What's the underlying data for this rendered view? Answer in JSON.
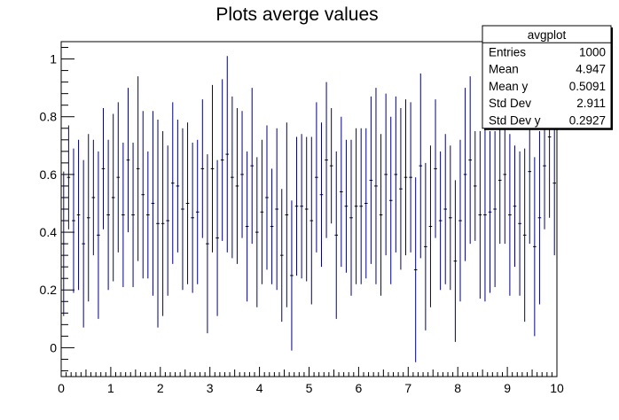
{
  "chart_data": {
    "type": "scatter",
    "title": "Plots averge values",
    "xlabel": "",
    "ylabel": "",
    "xlim": [
      0,
      10
    ],
    "ylim": [
      -0.1,
      1.06
    ],
    "x_ticks": [
      "0",
      "1",
      "2",
      "3",
      "4",
      "5",
      "6",
      "7",
      "8",
      "9",
      "10"
    ],
    "y_ticks": [
      "0",
      "0.2",
      "0.4",
      "0.6",
      "0.8",
      "1"
    ],
    "grid": false,
    "marker_color": "#000080",
    "legend": "top-right",
    "series": [
      {
        "x": [
          0.05,
          0.15,
          0.25,
          0.35,
          0.45,
          0.55,
          0.65,
          0.75,
          0.85,
          0.95,
          1.05,
          1.15,
          1.25,
          1.35,
          1.45,
          1.55,
          1.65,
          1.75,
          1.85,
          1.95,
          2.05,
          2.15,
          2.25,
          2.35,
          2.45,
          2.55,
          2.65,
          2.75,
          2.85,
          2.95,
          3.05,
          3.15,
          3.25,
          3.35,
          3.45,
          3.55,
          3.65,
          3.75,
          3.85,
          3.95,
          4.05,
          4.15,
          4.25,
          4.35,
          4.45,
          4.55,
          4.65,
          4.75,
          4.85,
          4.95,
          5.05,
          5.15,
          5.25,
          5.35,
          5.45,
          5.55,
          5.65,
          5.75,
          5.85,
          5.95,
          6.05,
          6.15,
          6.25,
          6.35,
          6.45,
          6.55,
          6.65,
          6.75,
          6.85,
          6.95,
          7.05,
          7.15,
          7.25,
          7.35,
          7.45,
          7.55,
          7.65,
          7.75,
          7.85,
          7.95,
          8.05,
          8.15,
          8.25,
          8.35,
          8.45,
          8.55,
          8.65,
          8.75,
          8.85,
          8.95,
          9.05,
          9.15,
          9.25,
          9.35,
          9.45,
          9.55,
          9.65,
          9.75,
          9.85,
          9.95
        ],
        "y": [
          0.36,
          0.59,
          0.44,
          0.46,
          0.36,
          0.45,
          0.52,
          0.39,
          0.62,
          0.46,
          0.52,
          0.59,
          0.46,
          0.65,
          0.46,
          0.62,
          0.53,
          0.46,
          0.5,
          0.43,
          0.43,
          0.44,
          0.57,
          0.56,
          0.48,
          0.5,
          0.45,
          0.47,
          0.62,
          0.36,
          0.62,
          0.38,
          0.65,
          0.67,
          0.59,
          0.56,
          0.6,
          0.42,
          0.63,
          0.4,
          0.47,
          0.52,
          0.42,
          0.48,
          0.32,
          0.46,
          0.25,
          0.49,
          0.49,
          0.48,
          0.44,
          0.59,
          0.53,
          0.65,
          0.63,
          0.39,
          0.54,
          0.49,
          0.45,
          0.49,
          0.49,
          0.5,
          0.58,
          0.56,
          0.46,
          0.6,
          0.51,
          0.6,
          0.55,
          0.59,
          0.59,
          0.27,
          0.63,
          0.35,
          0.42,
          0.62,
          0.44,
          0.48,
          0.45,
          0.3,
          0.44,
          0.6,
          0.65,
          0.56,
          0.46,
          0.46,
          0.47,
          0.48,
          0.58,
          0.6,
          0.46,
          0.49,
          0.43,
          0.39,
          0.61,
          0.35,
          0.45,
          0.63,
          0.73,
          0.57
        ],
        "y_err": [
          0.25,
          0.18,
          0.25,
          0.26,
          0.29,
          0.29,
          0.2,
          0.29,
          0.21,
          0.26,
          0.29,
          0.26,
          0.25,
          0.25,
          0.25,
          0.32,
          0.29,
          0.22,
          0.32,
          0.36,
          0.32,
          0.26,
          0.28,
          0.23,
          0.28,
          0.28,
          0.26,
          0.25,
          0.24,
          0.31,
          0.29,
          0.27,
          0.28,
          0.34,
          0.28,
          0.27,
          0.22,
          0.26,
          0.27,
          0.26,
          0.25,
          0.25,
          0.2,
          0.28,
          0.23,
          0.32,
          0.26,
          0.24,
          0.25,
          0.25,
          0.29,
          0.26,
          0.25,
          0.27,
          0.2,
          0.29,
          0.26,
          0.23,
          0.27,
          0.27,
          0.27,
          0.26,
          0.29,
          0.34,
          0.28,
          0.28,
          0.29,
          0.27,
          0.28,
          0.27,
          0.26,
          0.32,
          0.32,
          0.29,
          0.28,
          0.24,
          0.24,
          0.26,
          0.25,
          0.28,
          0.28,
          0.3,
          0.29,
          0.19,
          0.29,
          0.3,
          0.28,
          0.27,
          0.22,
          0.24,
          0.28,
          0.21,
          0.25,
          0.3,
          0.25,
          0.31,
          0.3,
          0.22,
          0.28,
          0.25
        ]
      }
    ],
    "stats_box": {
      "name": "avgplot",
      "rows": [
        {
          "label": "Entries",
          "value": "1000"
        },
        {
          "label": "Mean",
          "value": "4.947"
        },
        {
          "label": "Mean y",
          "value": "0.5091"
        },
        {
          "label": "Std Dev",
          "value": "2.911"
        },
        {
          "label": "Std Dev y",
          "value": "0.2927"
        }
      ]
    }
  }
}
